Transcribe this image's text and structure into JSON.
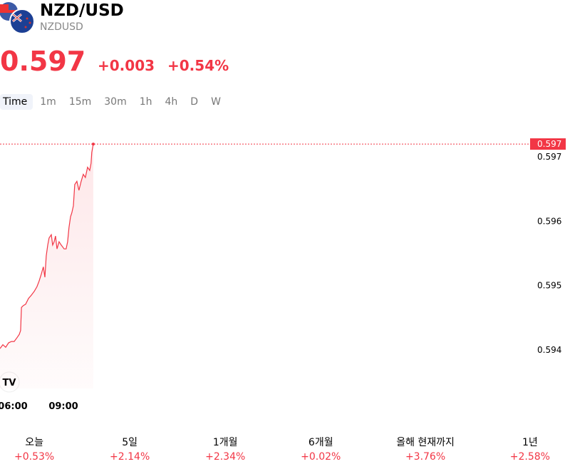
{
  "header": {
    "symbol": "NZD/USD",
    "ticker": "NZDUSD"
  },
  "quote": {
    "price": "0.597",
    "change": "+0.003",
    "change_pct": "+0.54%"
  },
  "intervals": [
    "Time",
    "1m",
    "15m",
    "30m",
    "1h",
    "4h",
    "D",
    "W"
  ],
  "chart_data": {
    "type": "line",
    "x": [
      5.24,
      5.41,
      5.58,
      5.75,
      5.92,
      6.08,
      6.25,
      6.38,
      6.46,
      6.51,
      6.63,
      6.76,
      6.93,
      7.1,
      7.27,
      7.43,
      7.56,
      7.69,
      7.81,
      7.9,
      7.98,
      8.07,
      8.15,
      8.28,
      8.36,
      8.45,
      8.53,
      8.62,
      8.74,
      8.87,
      9.04,
      9.16,
      9.25,
      9.33,
      9.42,
      9.5,
      9.59,
      9.67,
      9.8,
      9.92,
      10.05,
      10.18,
      10.3,
      10.43,
      10.56,
      10.64,
      10.68,
      10.77
    ],
    "series": [
      {
        "color": "#f23645",
        "values": [
          0.59402,
          0.59408,
          0.59404,
          0.59411,
          0.59413,
          0.59413,
          0.59419,
          0.59424,
          0.5943,
          0.59466,
          0.59469,
          0.59471,
          0.5948,
          0.59485,
          0.59491,
          0.59498,
          0.59507,
          0.59518,
          0.59529,
          0.59513,
          0.59546,
          0.59563,
          0.59574,
          0.59579,
          0.59563,
          0.59568,
          0.59577,
          0.59557,
          0.59568,
          0.59563,
          0.59557,
          0.59557,
          0.59568,
          0.5959,
          0.59607,
          0.59613,
          0.59624,
          0.59657,
          0.59662,
          0.59648,
          0.59662,
          0.59673,
          0.59668,
          0.59684,
          0.59679,
          0.5969,
          0.59707,
          0.5972
        ]
      }
    ],
    "xlim": [
      5.24,
      36.5
    ],
    "xticks": [
      {
        "value": 6,
        "label": "06:00"
      },
      {
        "value": 9,
        "label": "09:00"
      }
    ],
    "ylim": [
      0.5934,
      0.5975
    ],
    "yticks": [
      0.594,
      0.595,
      0.596,
      0.597
    ]
  },
  "periods": [
    {
      "label": "오늘",
      "change": "+0.53%"
    },
    {
      "label": "5일",
      "change": "+2.14%"
    },
    {
      "label": "1개월",
      "change": "+2.34%"
    },
    {
      "label": "6개월",
      "change": "+0.02%"
    },
    {
      "label": "올해 현재까지",
      "change": "+3.76%"
    },
    {
      "label": "1년",
      "change": "+2.58%"
    }
  ]
}
